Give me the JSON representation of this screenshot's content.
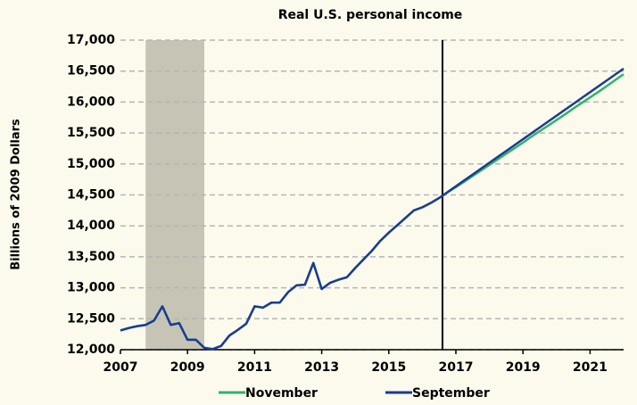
{
  "chart_data": {
    "type": "line",
    "title": "Real U.S. personal income",
    "ylabel": "Billions of 2009 Dollars",
    "x": [
      2007,
      2007.25,
      2007.5,
      2007.75,
      2008,
      2008.25,
      2008.5,
      2008.75,
      2009,
      2009.25,
      2009.5,
      2009.75,
      2010,
      2010.25,
      2010.5,
      2010.75,
      2011,
      2011.25,
      2011.5,
      2011.75,
      2012,
      2012.25,
      2012.5,
      2012.75,
      2013,
      2013.25,
      2013.5,
      2013.75,
      2014,
      2014.25,
      2014.5,
      2014.75,
      2015,
      2015.25,
      2015.5,
      2015.75,
      2016,
      2016.25,
      2016.5,
      2016.75,
      2017,
      2017.25,
      2017.5,
      2017.75,
      2018,
      2018.25,
      2018.5,
      2018.75,
      2019,
      2019.25,
      2019.5,
      2019.75,
      2020,
      2020.25,
      2020.5,
      2020.75,
      2021,
      2021.25,
      2021.5,
      2021.75,
      2022
    ],
    "series": [
      {
        "name": "November",
        "color": "#2fb36b",
        "values": [
          12310,
          12350,
          12380,
          12400,
          12470,
          12700,
          12400,
          12430,
          12160,
          12160,
          12030,
          12010,
          12060,
          12230,
          12320,
          12420,
          12700,
          12680,
          12760,
          12760,
          12930,
          13040,
          13050,
          13400,
          12980,
          13080,
          13130,
          13170,
          13320,
          13460,
          13600,
          13760,
          13890,
          14010,
          14130,
          14250,
          14300,
          14370,
          14450,
          14540,
          14625,
          14715,
          14805,
          14895,
          14985,
          15075,
          15165,
          15255,
          15345,
          15440,
          15530,
          15620,
          15710,
          15800,
          15895,
          15985,
          16075,
          16165,
          16260,
          16355,
          16450
        ]
      },
      {
        "name": "September",
        "color": "#1c3a94",
        "values": [
          12310,
          12350,
          12380,
          12400,
          12470,
          12700,
          12400,
          12430,
          12160,
          12160,
          12030,
          12010,
          12060,
          12230,
          12320,
          12420,
          12700,
          12680,
          12760,
          12760,
          12930,
          13040,
          13050,
          13400,
          12980,
          13080,
          13130,
          13170,
          13320,
          13460,
          13600,
          13760,
          13890,
          14010,
          14130,
          14250,
          14300,
          14370,
          14450,
          14545,
          14640,
          14735,
          14830,
          14925,
          15020,
          15115,
          15210,
          15305,
          15400,
          15495,
          15590,
          15685,
          15780,
          15875,
          15970,
          16065,
          16160,
          16255,
          16350,
          16445,
          16540
        ]
      }
    ],
    "shading": [
      2007.75,
      2009.5
    ],
    "vline": 2016.6,
    "xlim": [
      2007,
      2022
    ],
    "xticks": [
      2007,
      2009,
      2011,
      2013,
      2015,
      2017,
      2019,
      2021
    ],
    "ylim": [
      12000,
      17000
    ],
    "yticks": [
      {
        "value": 12000,
        "label": "12,000"
      },
      {
        "value": 12500,
        "label": "12,500"
      },
      {
        "value": 13000,
        "label": "13,000"
      },
      {
        "value": 13500,
        "label": "13,500"
      },
      {
        "value": 14000,
        "label": "14,000"
      },
      {
        "value": 14500,
        "label": "14,500"
      },
      {
        "value": 15000,
        "label": "15,000"
      },
      {
        "value": 15500,
        "label": "15,500"
      },
      {
        "value": 16000,
        "label": "16,000"
      },
      {
        "value": 16500,
        "label": "16,500"
      },
      {
        "value": 17000,
        "label": "17,000"
      }
    ],
    "grid": true,
    "legend": "bottom"
  }
}
